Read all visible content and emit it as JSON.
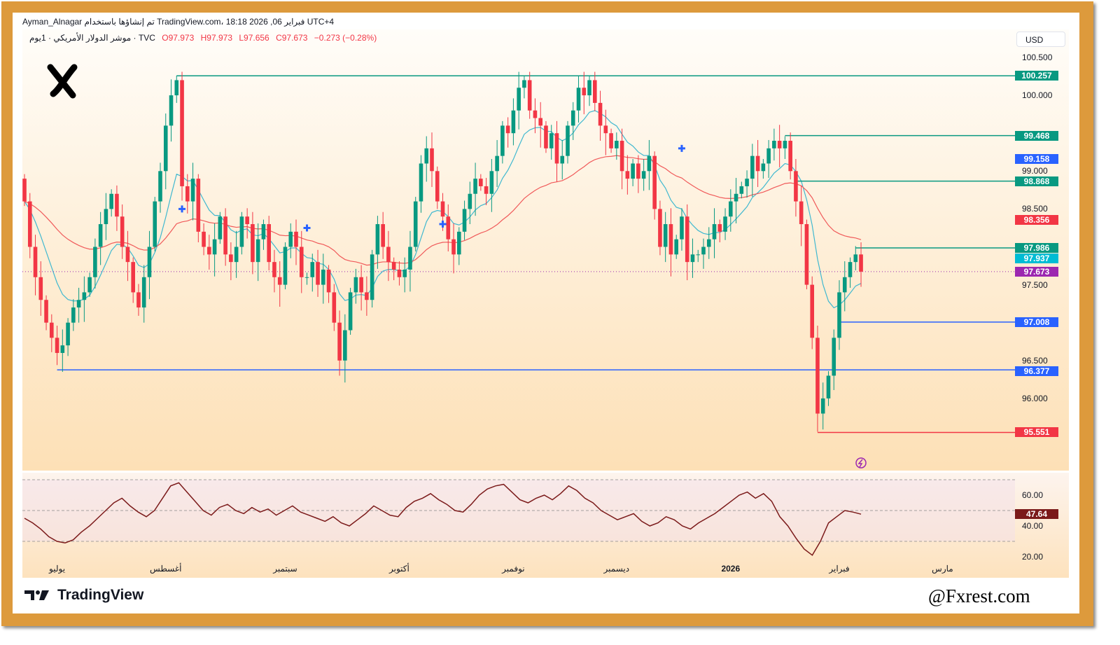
{
  "header": {
    "line1": "Ayman_Alnagar تم إنشاؤها باستخدام TradingView.com، 18:18 2026 ,06 فبراير UTC+4",
    "symbol": "موشر الدولار الأمريكي · 1يوم · TVC",
    "open": "O97.973",
    "high": "H97.973",
    "low": "L97.656",
    "close": "C97.673",
    "change": "−0.273 (−0.28%)"
  },
  "currency": "USD",
  "colors": {
    "up": "#089981",
    "down": "#f23645",
    "ma_fast": "#3fb8d0",
    "ma_slow": "#f05a5a",
    "green_line": "#089981",
    "blue_line": "#2962ff",
    "red_line": "#f23645",
    "last_price": "#9c27b0",
    "frame": "#dd9a3c",
    "rsi": "#7b1a1a"
  },
  "chart_data": {
    "type": "candlestick",
    "price_ticks": [
      100.5,
      100.0,
      99.0,
      98.5,
      97.5,
      96.5,
      96.0
    ],
    "price_ticks_labels": [
      "100.500",
      "100.000",
      "99.000",
      "98.500",
      "97.500",
      "96.500",
      "96.000"
    ],
    "ylim": [
      95.3,
      100.7
    ],
    "months": [
      {
        "label": "يوليو",
        "index": 6
      },
      {
        "label": "أغسطس",
        "index": 26
      },
      {
        "label": "سبتمبر",
        "index": 48
      },
      {
        "label": "أكتوبر",
        "index": 69
      },
      {
        "label": "نوفمبر",
        "index": 90
      },
      {
        "label": "ديسمبر",
        "index": 109
      },
      {
        "label": "2026",
        "index": 130
      },
      {
        "label": "فبراير",
        "index": 150
      },
      {
        "label": "مارس",
        "index": 169
      }
    ],
    "first_open": 98.9,
    "close": [
      98.6,
      98.0,
      97.6,
      97.3,
      97.0,
      96.8,
      96.6,
      96.7,
      97.0,
      97.2,
      97.3,
      97.4,
      97.6,
      98.0,
      98.3,
      98.5,
      98.7,
      98.4,
      98.0,
      97.8,
      97.4,
      97.2,
      97.6,
      98.0,
      98.6,
      99.0,
      99.6,
      100.0,
      100.2,
      98.8,
      98.6,
      98.9,
      98.2,
      98.0,
      97.9,
      98.1,
      98.4,
      97.9,
      97.8,
      98.0,
      98.4,
      98.3,
      97.8,
      98.1,
      98.3,
      97.8,
      97.6,
      97.5,
      98.0,
      98.2,
      98.0,
      97.6,
      97.6,
      97.8,
      97.5,
      97.7,
      97.4,
      97.0,
      96.5,
      96.9,
      97.4,
      97.6,
      97.4,
      97.3,
      97.9,
      98.3,
      98.0,
      97.8,
      97.7,
      97.6,
      97.7,
      98.0,
      98.6,
      99.1,
      99.3,
      99.0,
      98.6,
      98.4,
      98.1,
      97.9,
      98.2,
      98.5,
      98.7,
      98.9,
      98.8,
      98.7,
      99.0,
      99.2,
      99.6,
      99.5,
      99.8,
      100.1,
      100.2,
      99.8,
      99.7,
      99.6,
      99.3,
      99.5,
      99.1,
      99.2,
      99.6,
      99.8,
      100.1,
      100.0,
      100.2,
      99.9,
      99.6,
      99.5,
      99.3,
      99.4,
      99.0,
      98.9,
      99.1,
      98.9,
      99.0,
      99.2,
      98.5,
      98.0,
      98.3,
      97.9,
      98.1,
      98.4,
      97.8,
      97.9,
      97.9,
      98.0,
      98.1,
      98.3,
      98.2,
      98.4,
      98.6,
      98.7,
      98.8,
      98.9,
      99.2,
      99.0,
      99.1,
      99.3,
      99.4,
      99.3,
      99.4,
      99.0,
      98.6,
      98.3,
      97.5,
      96.8,
      95.8,
      96.0,
      96.3,
      96.8,
      97.4,
      97.6,
      97.8,
      97.9,
      97.673
    ],
    "levels": [
      {
        "price": 100.257,
        "label": "100.257",
        "from_index": 28,
        "kind": "green"
      },
      {
        "price": 99.468,
        "label": "99.468",
        "from_index": 140,
        "kind": "green"
      },
      {
        "price": 98.868,
        "label": "98.868",
        "from_index": 142,
        "kind": "green"
      },
      {
        "price": 97.986,
        "label": "97.986",
        "from_index": 153,
        "kind": "green"
      },
      {
        "price": 97.008,
        "label": "97.008",
        "from_index": 150,
        "kind": "blue"
      },
      {
        "price": 96.377,
        "label": "96.377",
        "from_index": 6,
        "kind": "blue"
      },
      {
        "price": 95.551,
        "label": "95.551",
        "from_index": 146,
        "kind": "red"
      }
    ],
    "badges": [
      {
        "price": 99.158,
        "label": "99.158",
        "color": "#2962ff"
      },
      {
        "price": 98.356,
        "label": "98.356",
        "color": "#f23645"
      },
      {
        "price": 97.937,
        "label": "97.937",
        "color": "#00bcd4"
      },
      {
        "price": 97.673,
        "label": "97.673",
        "color": "#9c27b0"
      }
    ],
    "cross_markers": [
      {
        "index": 29,
        "price": 98.5
      },
      {
        "index": 52,
        "price": 98.25
      },
      {
        "index": 77,
        "price": 98.3
      },
      {
        "index": 121,
        "price": 99.3
      }
    ],
    "rsi": {
      "ticks": [
        60,
        40,
        20
      ],
      "ticks_labels": [
        "60.00",
        "40.00",
        "20.00"
      ],
      "bands": [
        70,
        50,
        30
      ],
      "last": "47.64",
      "values": [
        45,
        42,
        38,
        33,
        30,
        29,
        31,
        36,
        40,
        45,
        50,
        55,
        58,
        53,
        49,
        46,
        50,
        58,
        66,
        68,
        62,
        56,
        50,
        47,
        52,
        54,
        50,
        48,
        52,
        49,
        51,
        47,
        50,
        53,
        49,
        47,
        45,
        43,
        46,
        42,
        40,
        44,
        48,
        53,
        50,
        47,
        46,
        52,
        56,
        58,
        61,
        57,
        54,
        50,
        49,
        54,
        60,
        64,
        66,
        67,
        62,
        57,
        55,
        58,
        60,
        57,
        61,
        66,
        63,
        58,
        55,
        50,
        47,
        44,
        46,
        48,
        43,
        40,
        42,
        46,
        44,
        40,
        38,
        42,
        45,
        48,
        52,
        56,
        60,
        62,
        58,
        61,
        56,
        46,
        40,
        32,
        25,
        21,
        30,
        42,
        46,
        50,
        49,
        47.64
      ]
    }
  }
}
